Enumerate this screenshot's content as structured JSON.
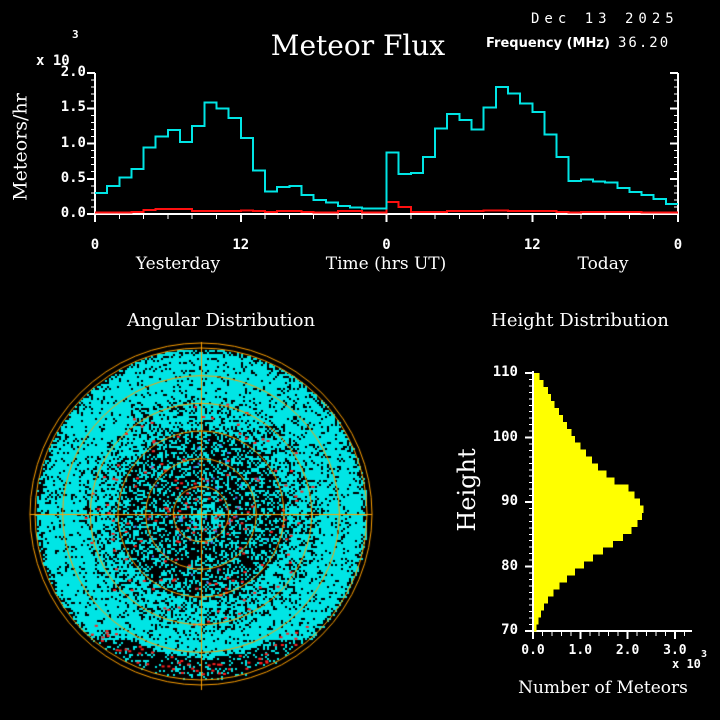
{
  "header": {
    "date": "Dec 13 2025",
    "title": "Meteor Flux",
    "frequency_label": "Frequency (MHz)",
    "frequency_value": "36.20"
  },
  "colors": {
    "background": "#000000",
    "text": "#FFFFFF",
    "flux_line": "#00E5E5",
    "background_line": "#FF1010",
    "sky_grid": "#FFA000",
    "sky_dot": "#00E5E5",
    "sky_dot_red": "#FF2020",
    "sky_dot_blue": "#5577FF",
    "histogram_bar": "#FFFF00",
    "axis": "#FFFFFF"
  },
  "chart_data": [
    {
      "id": "flux",
      "type": "line",
      "style": "step",
      "ylabel": "Meteors/hr",
      "y_multiplier": "x 10",
      "y_exponent": "3",
      "xlabel": "Time (hrs UT)",
      "x_left_label": "Yesterday",
      "x_right_label": "Today",
      "yticks": [
        "0.0",
        "0.5",
        "1.0",
        "1.5",
        "2.0"
      ],
      "xticks": [
        "0",
        "12",
        "0",
        "12",
        "0"
      ],
      "ylim": [
        0,
        2.0
      ],
      "xlim_hours": [
        0,
        48
      ],
      "grid": false,
      "series": [
        {
          "name": "meteor-flux",
          "color": "#00E5E5",
          "values": [
            0.3,
            0.4,
            0.52,
            0.64,
            0.94,
            1.1,
            1.19,
            1.02,
            1.25,
            1.58,
            1.5,
            1.36,
            1.08,
            0.62,
            0.32,
            0.38,
            0.4,
            0.27,
            0.2,
            0.16,
            0.11,
            0.09,
            0.08,
            0.08,
            0.87,
            0.57,
            0.58,
            0.81,
            1.21,
            1.42,
            1.33,
            1.2,
            1.51,
            1.8,
            1.71,
            1.57,
            1.45,
            1.13,
            0.81,
            0.47,
            0.49,
            0.46,
            0.45,
            0.37,
            0.31,
            0.27,
            0.21,
            0.14
          ]
        },
        {
          "name": "background-rate",
          "color": "#FF1010",
          "values": [
            0.02,
            0.02,
            0.02,
            0.03,
            0.06,
            0.07,
            0.07,
            0.07,
            0.04,
            0.04,
            0.04,
            0.04,
            0.05,
            0.04,
            0.03,
            0.04,
            0.04,
            0.03,
            0.02,
            0.02,
            0.04,
            0.04,
            0.02,
            0.02,
            0.17,
            0.1,
            0.03,
            0.03,
            0.03,
            0.04,
            0.04,
            0.04,
            0.05,
            0.05,
            0.04,
            0.04,
            0.04,
            0.04,
            0.03,
            0.02,
            0.03,
            0.03,
            0.03,
            0.03,
            0.03,
            0.02,
            0.02,
            0.02
          ]
        }
      ]
    },
    {
      "id": "angular",
      "type": "scatter",
      "title": "Angular Distribution",
      "description": "Polar sky map of meteor echo directions; dense cyan speckle denser toward horizon, red overdense echoes mostly central and along lower rim, few blue echoes near center. Orange grid: 6 elevation rings plus double outer rim and crosshair.",
      "rings": 6,
      "dot_layers": [
        {
          "name": "echoes",
          "color": "#00E5E5"
        },
        {
          "name": "overdense-echoes",
          "color": "#FF2020"
        },
        {
          "name": "special-echoes",
          "color": "#5577FF"
        }
      ],
      "generation": {
        "seed": 7,
        "n_red_inner": 150,
        "n_red_rim": 55,
        "n_blue": 40
      }
    },
    {
      "id": "height",
      "type": "bar",
      "title": "Height Distribution",
      "orientation": "horizontal",
      "ylabel": "Height",
      "xlabel": "Number of Meteors",
      "x_multiplier": "x 10",
      "x_exponent": "3",
      "yticks": [
        "110",
        "100",
        "90",
        "80",
        "70"
      ],
      "xticks": [
        "0.0",
        "1.0",
        "2.0",
        "3.0"
      ],
      "ylim": [
        70,
        110
      ],
      "xlim": [
        0,
        3.0
      ],
      "bar_color": "#FFFF00",
      "bins_top_to_bottom": {
        "from": 110,
        "to": 70
      },
      "values": [
        0.12,
        0.2,
        0.3,
        0.36,
        0.43,
        0.53,
        0.61,
        0.7,
        0.79,
        0.87,
        0.98,
        1.1,
        1.23,
        1.35,
        1.53,
        1.7,
        2.0,
        2.13,
        2.24,
        2.31,
        2.28,
        2.19,
        2.06,
        1.88,
        1.67,
        1.46,
        1.25,
        1.06,
        0.87,
        0.7,
        0.54,
        0.41,
        0.3,
        0.21,
        0.15,
        0.09,
        0.05
      ]
    }
  ]
}
